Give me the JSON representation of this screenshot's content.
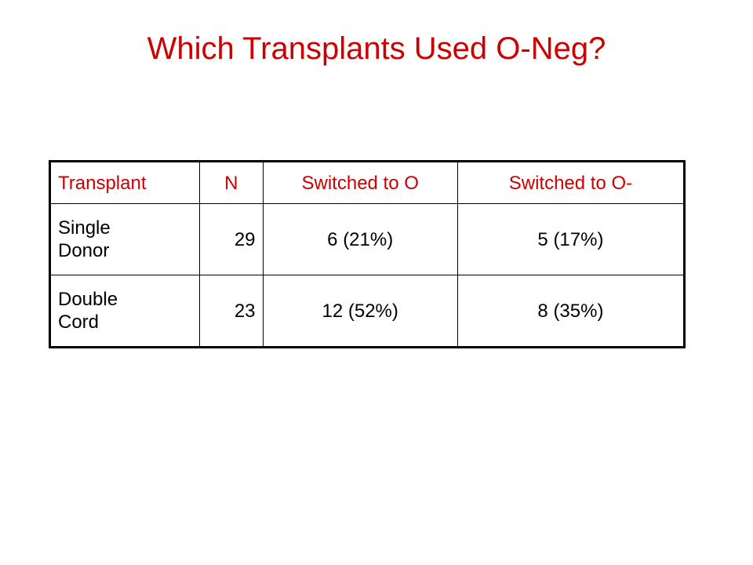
{
  "title": "Which Transplants Used O-Neg?",
  "colors": {
    "title": "#cc0000",
    "header_text": "#cc0000",
    "body_text": "#000000",
    "border": "#000000",
    "background": "#ffffff"
  },
  "table": {
    "headers": [
      "Transplant",
      "N",
      "Switched to O",
      "Switched to O-"
    ],
    "rows": [
      {
        "transplant": [
          "Single",
          "Donor"
        ],
        "n": "29",
        "switched_o": "6 (21%)",
        "switched_o_neg": "5 (17%)"
      },
      {
        "transplant": [
          "Double",
          "Cord"
        ],
        "n": "23",
        "switched_o": "12 (52%)",
        "switched_o_neg": "8 (35%)"
      }
    ]
  }
}
